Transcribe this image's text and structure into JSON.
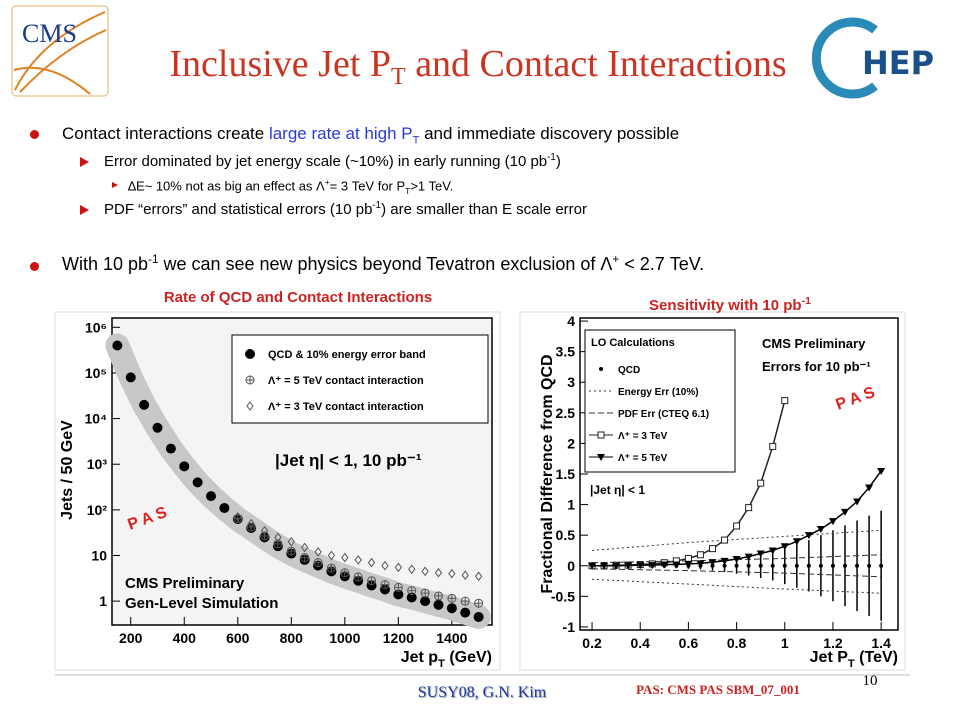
{
  "header": {
    "logo": "CMS",
    "title": [
      "Inclusive Jet P",
      "T",
      " and Contact Interactions"
    ],
    "hep_logo": "HEP"
  },
  "bullets": [
    {
      "parts": [
        "Contact interactions create ",
        "large rate at high P",
        "T",
        " and immediate discovery possible"
      ]
    },
    {
      "parts": [
        "Error dominated by jet energy scale (~10%) in early running (10 pb",
        "-1",
        ")"
      ]
    },
    {
      "parts": [
        "∆E~ 10% not as big an effect as Λ",
        "+",
        "= 3 TeV  for P",
        "T",
        ">1 TeV."
      ]
    },
    {
      "parts": [
        "PDF “errors” and statistical errors (10 pb",
        "-1",
        ") are smaller than E scale error"
      ]
    },
    {
      "parts": [
        "With 10 pb",
        "-1",
        " we can see new physics beyond Tevatron exclusion  of Λ",
        "+",
        " < 2.7 TeV."
      ]
    }
  ],
  "charts": [
    {
      "type": "scatter",
      "title": [
        "Rate of QCD and Contact Interactions"
      ],
      "ylabel": [
        "Jets / 50 GeV"
      ],
      "xlabel": [
        "Jet p",
        "T",
        " (GeV)"
      ],
      "log_y": true,
      "xlim": [
        130,
        1550
      ],
      "ylim": [
        0.3,
        1600000
      ],
      "xticks": [
        200,
        400,
        600,
        800,
        1000,
        1200,
        1400
      ],
      "yticks": [
        1,
        10,
        {
          "value": 100,
          "label": "10²"
        },
        {
          "value": 1000,
          "label": "10³"
        },
        {
          "value": 10000,
          "label": "10⁴"
        },
        {
          "value": 100000,
          "label": "10⁵"
        },
        {
          "value": 1000000,
          "label": "10⁶"
        }
      ],
      "series": [
        {
          "name": "QCD &  10% energy error band",
          "marker": "circle",
          "band": true,
          "color": "#000000",
          "band_color": "#c8c8c8",
          "x": [
            150,
            200,
            250,
            300,
            350,
            400,
            450,
            500,
            550,
            600,
            650,
            700,
            750,
            800,
            850,
            900,
            950,
            1000,
            1050,
            1100,
            1150,
            1200,
            1250,
            1300,
            1350,
            1400,
            1450,
            1500
          ],
          "values": [
            400000,
            80000,
            20000,
            6300,
            2200,
            900,
            400,
            200,
            110,
            63,
            40,
            25,
            16,
            11,
            8,
            6,
            4.5,
            3.5,
            2.8,
            2.2,
            1.8,
            1.4,
            1.2,
            1,
            0.83,
            0.7,
            0.56,
            0.45
          ]
        },
        {
          "name": "Λ⁺ = 5 TeV contact interaction",
          "marker": "cross",
          "color": "#555555",
          "x": [
            600,
            650,
            700,
            750,
            800,
            850,
            900,
            950,
            1000,
            1050,
            1100,
            1150,
            1200,
            1250,
            1300,
            1350,
            1400,
            1450,
            1500
          ],
          "values": [
            65,
            42,
            27,
            18,
            12.5,
            9,
            7,
            5.3,
            4.2,
            3.4,
            2.8,
            2.3,
            2,
            1.7,
            1.5,
            1.3,
            1.15,
            1,
            0.9
          ]
        },
        {
          "name": "Λ⁺ = 3 TeV contact interaction",
          "marker": "diamond",
          "color": "#555555",
          "x": [
            600,
            650,
            700,
            750,
            800,
            850,
            900,
            950,
            1000,
            1050,
            1100,
            1150,
            1200,
            1250,
            1300,
            1350,
            1400,
            1450,
            1500
          ],
          "values": [
            70,
            50,
            35,
            25,
            20,
            15,
            12,
            10,
            9,
            8,
            7,
            6,
            5.5,
            5,
            4.5,
            4.2,
            4,
            3.7,
            3.5
          ]
        }
      ],
      "annotations": [
        "|Jet η| < 1,    10 pb⁻¹",
        "CMS Preliminary",
        "Gen-Level Simulation",
        "P A S"
      ]
    },
    {
      "type": "scatter",
      "title": [
        "Sensitivity with 10 pb",
        "-1"
      ],
      "ylabel": [
        "Fractional Difference from QCD"
      ],
      "xlabel": [
        "Jet P",
        "T",
        " (TeV)"
      ],
      "log_y": false,
      "xlim": [
        0.15,
        1.47
      ],
      "ylim": [
        -1.05,
        4.05
      ],
      "xticks": [
        0.2,
        0.4,
        0.6,
        0.8,
        1,
        1.2,
        1.4
      ],
      "yticks": [
        -1,
        -0.5,
        0,
        0.5,
        1,
        1.5,
        2,
        2.5,
        3,
        3.5,
        4
      ],
      "legend_title": "LO Calculations",
      "series": [
        {
          "name": "QCD",
          "marker": "dot",
          "color": "#000000",
          "x": [
            0.2,
            0.25,
            0.3,
            0.35,
            0.4,
            0.45,
            0.5,
            0.55,
            0.6,
            0.65,
            0.7,
            0.75,
            0.8,
            0.85,
            0.9,
            0.95,
            1.0,
            1.05,
            1.1,
            1.15,
            1.2,
            1.25,
            1.3,
            1.35,
            1.4
          ],
          "values": [
            0,
            0,
            0,
            0,
            0,
            0,
            0,
            0,
            0,
            0,
            0,
            0,
            0,
            0,
            0,
            0,
            0,
            0,
            0,
            0,
            0,
            0,
            0,
            0,
            0
          ],
          "errors": [
            0.01,
            0.01,
            0.01,
            0.02,
            0.02,
            0.03,
            0.03,
            0.04,
            0.05,
            0.06,
            0.08,
            0.1,
            0.13,
            0.16,
            0.2,
            0.24,
            0.3,
            0.36,
            0.42,
            0.5,
            0.58,
            0.66,
            0.74,
            0.82,
            0.9
          ]
        },
        {
          "name": "Energy Err (10%)",
          "dash": "dotted",
          "color": "#333333",
          "x": [
            0.2,
            0.6,
            1.0,
            1.4
          ],
          "upper": [
            0.25,
            0.38,
            0.48,
            0.58
          ],
          "lower": [
            -0.22,
            -0.3,
            -0.38,
            -0.45
          ]
        },
        {
          "name": "PDF Err (CTEQ 6.1)",
          "dash": "dashed",
          "color": "#333333",
          "x": [
            0.2,
            0.6,
            1.0,
            1.4
          ],
          "upper": [
            0.05,
            0.08,
            0.12,
            0.18
          ],
          "lower": [
            -0.05,
            -0.08,
            -0.12,
            -0.18
          ]
        },
        {
          "name": "Λ⁺ = 3 TeV",
          "marker": "square",
          "line": true,
          "color": "#222222",
          "x": [
            0.2,
            0.25,
            0.3,
            0.35,
            0.4,
            0.45,
            0.5,
            0.55,
            0.6,
            0.65,
            0.7,
            0.75,
            0.8,
            0.85,
            0.9,
            0.95,
            1.0
          ],
          "values": [
            0,
            0,
            0.01,
            0.01,
            0.02,
            0.03,
            0.05,
            0.08,
            0.12,
            0.18,
            0.28,
            0.42,
            0.65,
            0.95,
            1.35,
            1.95,
            2.7
          ]
        },
        {
          "name": "Λ⁺ = 5 TeV",
          "marker": "triangle",
          "line": true,
          "color": "#000000",
          "x": [
            0.2,
            0.25,
            0.3,
            0.35,
            0.4,
            0.45,
            0.5,
            0.55,
            0.6,
            0.65,
            0.7,
            0.75,
            0.8,
            0.85,
            0.9,
            0.95,
            1.0,
            1.05,
            1.1,
            1.15,
            1.2,
            1.25,
            1.3,
            1.35,
            1.4
          ],
          "values": [
            0,
            0,
            0,
            0.005,
            0.01,
            0.01,
            0.02,
            0.02,
            0.03,
            0.04,
            0.06,
            0.08,
            0.11,
            0.15,
            0.2,
            0.25,
            0.32,
            0.4,
            0.5,
            0.6,
            0.73,
            0.88,
            1.05,
            1.28,
            1.55
          ]
        }
      ],
      "annotations": [
        "CMS Preliminary",
        "Errors for 10 pb⁻¹",
        "|Jet η| < 1",
        "P A S"
      ]
    }
  ],
  "footer": {
    "author": "SUSY08, G.N. Kim",
    "reference": "PAS: CMS PAS SBM_07_001",
    "page": "10"
  }
}
